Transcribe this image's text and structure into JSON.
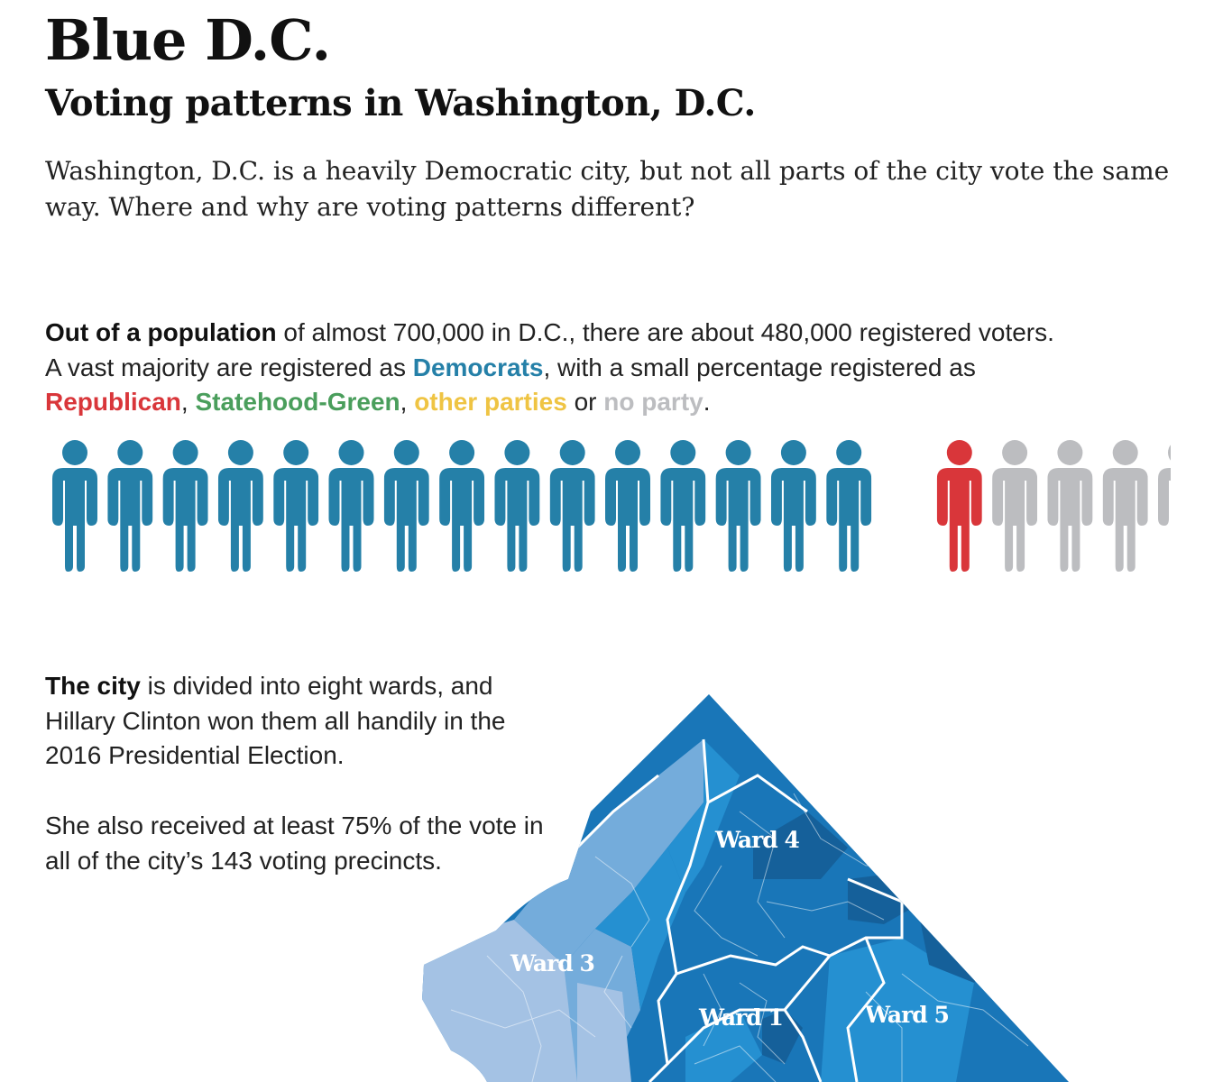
{
  "title": "Blue D.C.",
  "subtitle": "Voting patterns in Washington, D.C.",
  "intro": "Washington, D.C. is a heavily Democratic city, but not all parts of the city vote the same way. Where and why are voting patterns different?",
  "population_text": {
    "lead": "Out of a population",
    "line1_rest": " of almost 700,000 in D.C., there are about 480,000 registered voters.",
    "line2_a": "A vast majority  are registered as ",
    "democrats": "Democrats",
    "line2_b": ", with a small percentage registered as",
    "republican": "Republican",
    "comma1": ", ",
    "statehood_green": "Statehood-Green",
    "comma2": ", ",
    "other_parties": "other parties",
    "or": " or ",
    "no_party": "no party",
    "period": "."
  },
  "pictogram": {
    "party_colors": {
      "democrats": "#2580a8",
      "republican": "#d9363a",
      "statehood_green": "#4a9e5c",
      "other_parties": "#efc443",
      "no_party": "#bcbdc0"
    },
    "figures": [
      "democrats",
      "democrats",
      "democrats",
      "democrats",
      "democrats",
      "democrats",
      "democrats",
      "democrats",
      "democrats",
      "democrats",
      "democrats",
      "democrats",
      "democrats",
      "democrats",
      "democrats",
      "mixed",
      "republican",
      "no_party",
      "no_party",
      "no_party",
      "no_party"
    ]
  },
  "city_text": {
    "lead": "The city",
    "rest": " is divided into eight wards, and Hillary Clinton won them all handily in the 2016 Presidential Election.",
    "para2": "She also received at least 75% of the vote in all of the city’s 143 voting precincts."
  },
  "map": {
    "ward_labels": {
      "ward4": "Ward 4",
      "ward3": "Ward 3",
      "ward1": "Ward 1",
      "ward5": "Ward 5"
    },
    "shade_colors": [
      "#a4c2e4",
      "#74acdb",
      "#2590d1",
      "#1976b8",
      "#15609a"
    ]
  }
}
